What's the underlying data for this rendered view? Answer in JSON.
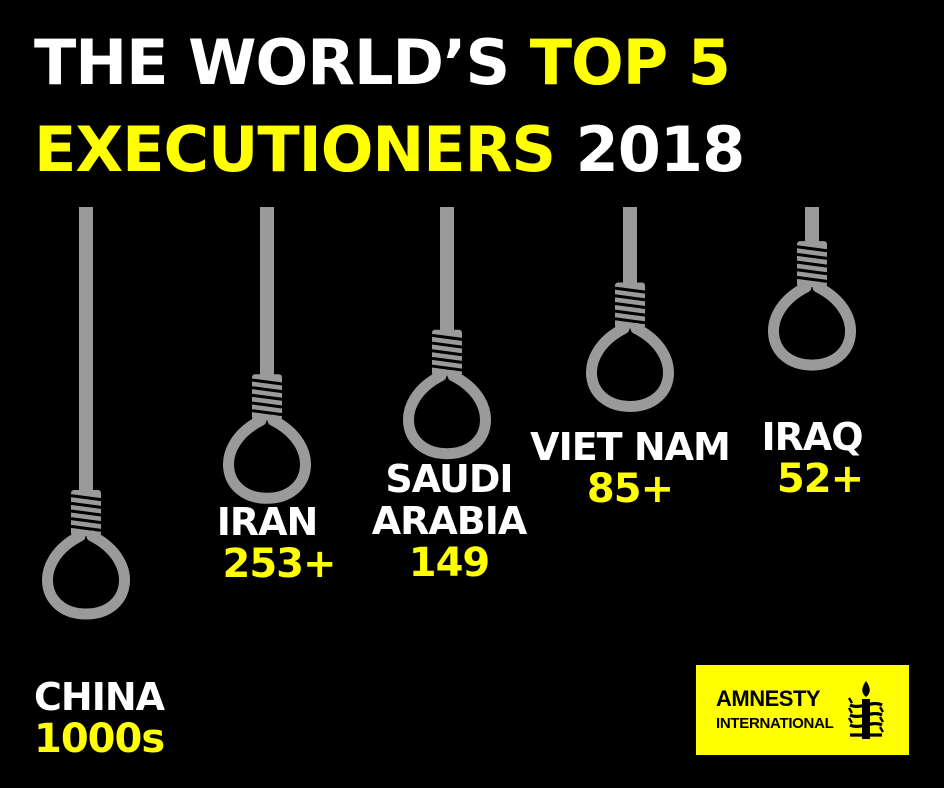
{
  "title": {
    "white_part_1": "THE WORLD’S ",
    "yellow_part_1": "TOP 5",
    "yellow_part_2": "EXECUTIONERS",
    "white_part_2": " 2018"
  },
  "colors": {
    "background": "#000000",
    "accent": "#ffff00",
    "text": "#ffffff",
    "rope": "#9a9a9a"
  },
  "logo": {
    "line1": "AMNESTY",
    "line2": "INTERNATIONAL",
    "icon": "candle-barbed-wire-icon"
  },
  "chart_data": {
    "type": "bar",
    "orientation": "vertical",
    "mark": "noose-rope",
    "title": "THE WORLD’S TOP 5 EXECUTIONERS 2018",
    "categories": [
      "CHINA",
      "IRAN",
      "SAUDI ARABIA",
      "VIET NAM",
      "IRAQ"
    ],
    "label_lines": [
      [
        "CHINA"
      ],
      [
        "IRAN"
      ],
      [
        "SAUDI",
        "ARABIA"
      ],
      [
        "VIET NAM"
      ],
      [
        "IRAQ"
      ]
    ],
    "value_labels": [
      "1000s",
      "253+",
      "149",
      "85+",
      "52+"
    ],
    "values": [
      1000,
      253,
      149,
      85,
      52
    ],
    "grid": false,
    "legend": "none"
  }
}
